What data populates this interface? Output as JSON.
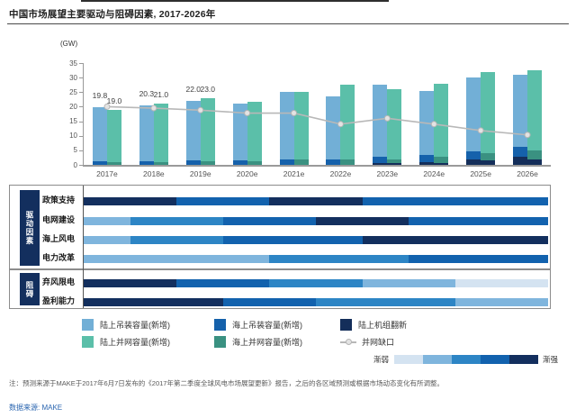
{
  "title": "中国市场展望主要驱动与阻碍因素, 2017-2026年",
  "colors": {
    "onshore_install": "#72afd6",
    "offshore_install": "#1561ab",
    "refurb": "#142e5a",
    "onshore_grid": "#5bbfa9",
    "offshore_grid": "#3a9181",
    "line": "#b8b8b8",
    "line_marker": "#e3e3e3",
    "axis": "#9a9a9a"
  },
  "chart_data": {
    "type": "bar",
    "subtype": "paired stacked bars with line overlay",
    "unit_label": "(GW)",
    "ylim": [
      0,
      35
    ],
    "yticks": [
      0,
      5,
      10,
      15,
      20,
      25,
      30,
      35
    ],
    "grid": "off",
    "years": [
      "2017e",
      "2018e",
      "2019e",
      "2020e",
      "2021e",
      "2022e",
      "2023e",
      "2024e",
      "2025e",
      "2026e"
    ],
    "install_stack": [
      {
        "name": "陆上机组翻新",
        "colorKey": "refurb",
        "values": [
          0,
          0,
          0,
          0,
          0,
          0,
          0.7,
          1.0,
          1.8,
          2.8
        ]
      },
      {
        "name": "海上吊装容量(新增)",
        "colorKey": "offshore_install",
        "values": [
          1.2,
          1.2,
          1.4,
          1.4,
          2.0,
          2.0,
          2.2,
          2.5,
          3.0,
          3.5
        ]
      },
      {
        "name": "陆上吊装容量(新增)",
        "colorKey": "onshore_install",
        "values": [
          18.6,
          19.1,
          20.6,
          19.6,
          23.0,
          21.5,
          24.6,
          22.0,
          25.2,
          24.7
        ]
      }
    ],
    "grid_stack": [
      {
        "name": "陆上机组翻新",
        "colorKey": "refurb",
        "values": [
          0,
          0,
          0,
          0,
          0,
          0,
          0.5,
          0.7,
          1.5,
          2.0
        ]
      },
      {
        "name": "海上并网容量(新增)",
        "colorKey": "offshore_grid",
        "values": [
          1.0,
          1.0,
          1.2,
          1.2,
          2.0,
          1.8,
          1.5,
          2.0,
          2.5,
          3.0
        ]
      },
      {
        "name": "陆上并网容量(新增)",
        "colorKey": "onshore_grid",
        "values": [
          18.0,
          20.0,
          21.8,
          20.6,
          23.0,
          25.7,
          24.0,
          25.3,
          28.0,
          27.5
        ]
      }
    ],
    "install_totals": [
      19.8,
      20.3,
      22.0,
      21.0,
      25.0,
      23.5,
      27.5,
      25.5,
      30.0,
      31.0
    ],
    "grid_totals": [
      19.0,
      21.0,
      23.0,
      21.8,
      25.0,
      27.5,
      26.0,
      28.0,
      32.0,
      32.5
    ],
    "line": {
      "name": "并网缺口",
      "values": [
        20.0,
        19.5,
        18.8,
        17.8,
        17.8,
        14.0,
        16.0,
        14.0,
        11.8,
        10.3
      ]
    },
    "data_labels": [
      {
        "year_index": 0,
        "install": "19.8",
        "grid": "19.0"
      },
      {
        "year_index": 1,
        "install": "20.3",
        "grid": "21.0"
      },
      {
        "year_index": 2,
        "install": "22.0",
        "grid": "23.0"
      }
    ]
  },
  "factors": {
    "scale": {
      "weak_label": "渐弱",
      "strong_label": "渐强",
      "levels": [
        "#d4e3f1",
        "#7fb5dd",
        "#2d85c5",
        "#1262ae",
        "#132f5e"
      ]
    },
    "groups": [
      {
        "label": "驱动因素",
        "rows": [
          {
            "label": "政策支持",
            "segments": [
              {
                "level": 5,
                "years": 2
              },
              {
                "level": 4,
                "years": 2
              },
              {
                "level": 5,
                "years": 2
              },
              {
                "level": 4,
                "years": 4
              }
            ]
          },
          {
            "label": "电网建设",
            "segments": [
              {
                "level": 2,
                "years": 1
              },
              {
                "level": 3,
                "years": 2
              },
              {
                "level": 4,
                "years": 2
              },
              {
                "level": 5,
                "years": 2
              },
              {
                "level": 4,
                "years": 3
              }
            ]
          },
          {
            "label": "海上风电",
            "segments": [
              {
                "level": 2,
                "years": 1
              },
              {
                "level": 3,
                "years": 2
              },
              {
                "level": 4,
                "years": 3
              },
              {
                "level": 5,
                "years": 4
              }
            ]
          },
          {
            "label": "电力改革",
            "segments": [
              {
                "level": 2,
                "years": 4
              },
              {
                "level": 3,
                "years": 3
              },
              {
                "level": 4,
                "years": 3
              }
            ]
          }
        ]
      },
      {
        "label": "阻碍",
        "rows": [
          {
            "label": "弃风限电",
            "segments": [
              {
                "level": 5,
                "years": 2
              },
              {
                "level": 4,
                "years": 2
              },
              {
                "level": 3,
                "years": 2
              },
              {
                "level": 2,
                "years": 2
              },
              {
                "level": 1,
                "years": 2
              }
            ]
          },
          {
            "label": "盈利能力",
            "segments": [
              {
                "level": 5,
                "years": 3
              },
              {
                "level": 4,
                "years": 2
              },
              {
                "level": 3,
                "years": 3
              },
              {
                "level": 2,
                "years": 2
              }
            ]
          }
        ]
      }
    ]
  },
  "legend": {
    "items": [
      {
        "label": "陆上吊装容量(新增)",
        "colorKey": "onshore_install",
        "type": "swatch",
        "col": 0,
        "row": 0
      },
      {
        "label": "海上吊装容量(新增)",
        "colorKey": "offshore_install",
        "type": "swatch",
        "col": 1,
        "row": 0
      },
      {
        "label": "陆上机组翻新",
        "colorKey": "refurb",
        "type": "swatch",
        "col": 2,
        "row": 0
      },
      {
        "label": "陆上并网容量(新增)",
        "colorKey": "onshore_grid",
        "type": "swatch",
        "col": 0,
        "row": 1
      },
      {
        "label": "海上并网容量(新增)",
        "colorKey": "offshore_grid",
        "type": "swatch",
        "col": 1,
        "row": 1
      },
      {
        "label": "并网缺口",
        "type": "line",
        "col": 2,
        "row": 1
      }
    ]
  },
  "footer": {
    "note": "注：预测来源于MAKE于2017年6月7日发布的《2017年第二季度全球风电市场展望更新》报告，之后的各区域预测或根据市场动态变化有所调整。",
    "source": "数据来源: MAKE"
  }
}
